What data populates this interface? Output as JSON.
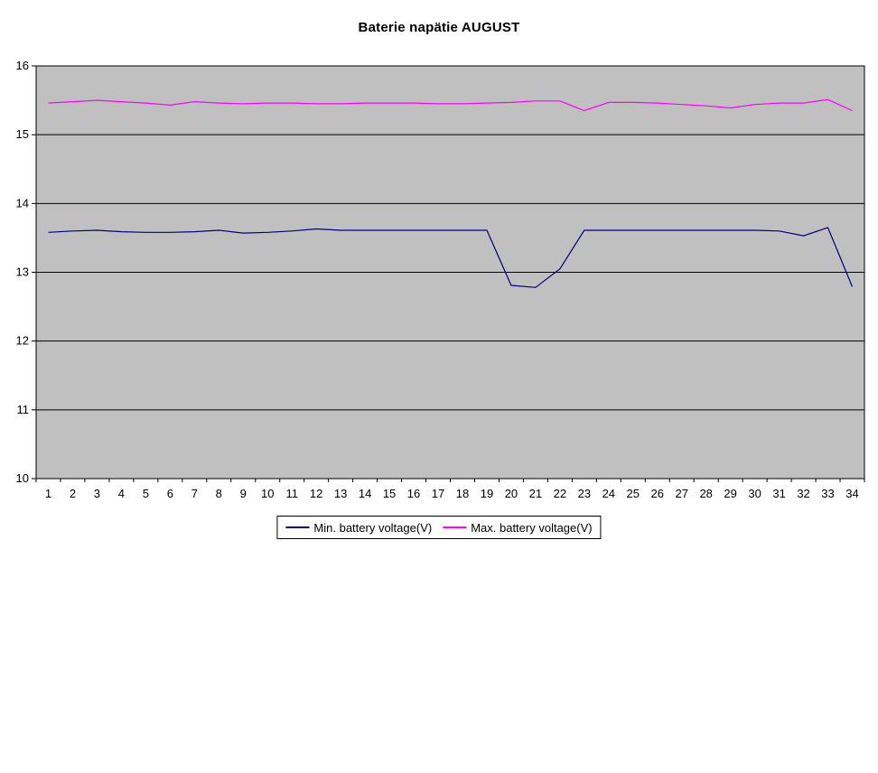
{
  "page": {
    "background": "#FFFFFF"
  },
  "colors": {
    "plot_bg": "#C0C0C0",
    "grid": "#000000",
    "axis": "#000000",
    "min_series": "#000080",
    "max_series": "#FF00FF"
  },
  "chart_data": {
    "type": "line",
    "title": "Baterie napätie AUGUST",
    "xlabel": "",
    "ylabel": "",
    "ylim": [
      10,
      16
    ],
    "ytick_step": 1,
    "grid": true,
    "legend_position": "bottom",
    "categories": [
      "1",
      "2",
      "3",
      "4",
      "5",
      "6",
      "7",
      "8",
      "9",
      "10",
      "11",
      "12",
      "13",
      "14",
      "15",
      "16",
      "17",
      "18",
      "19",
      "20",
      "21",
      "22",
      "23",
      "24",
      "25",
      "26",
      "27",
      "28",
      "29",
      "30",
      "31",
      "32",
      "33",
      "34"
    ],
    "series": [
      {
        "name": "Min. battery voltage(V)",
        "color": "#000080",
        "values": [
          13.58,
          13.6,
          13.61,
          13.59,
          13.58,
          13.58,
          13.59,
          13.61,
          13.57,
          13.58,
          13.6,
          13.63,
          13.61,
          13.61,
          13.61,
          13.61,
          13.61,
          13.61,
          13.61,
          12.81,
          12.78,
          13.05,
          13.61,
          13.61,
          13.61,
          13.61,
          13.61,
          13.61,
          13.61,
          13.61,
          13.6,
          13.53,
          13.65,
          12.79
        ]
      },
      {
        "name": "Max. battery voltage(V)",
        "color": "#FF00FF",
        "values": [
          15.46,
          15.48,
          15.5,
          15.48,
          15.46,
          15.43,
          15.48,
          15.46,
          15.45,
          15.46,
          15.46,
          15.45,
          15.45,
          15.46,
          15.46,
          15.46,
          15.45,
          15.45,
          15.46,
          15.47,
          15.49,
          15.49,
          15.35,
          15.47,
          15.47,
          15.46,
          15.44,
          15.42,
          15.39,
          15.44,
          15.46,
          15.46,
          15.51,
          15.35
        ]
      }
    ]
  }
}
